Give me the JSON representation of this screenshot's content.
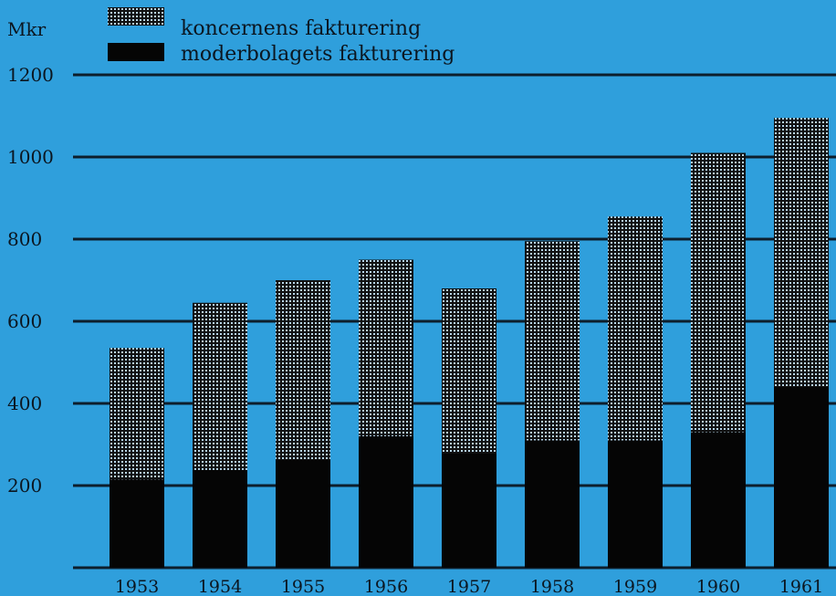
{
  "chart_data": {
    "type": "bar",
    "ylabel": "Mkr",
    "ylim": [
      0,
      1200
    ],
    "yticks": [
      200,
      400,
      600,
      800,
      1000,
      1200
    ],
    "grid": true,
    "legend_position": "top-left",
    "categories": [
      "1953",
      "1954",
      "1955",
      "1956",
      "1957",
      "1958",
      "1959",
      "1960",
      "1961"
    ],
    "series": [
      {
        "name": "koncernens fakturering",
        "values": [
          535,
          645,
          700,
          750,
          680,
          795,
          855,
          1010,
          1095
        ],
        "color": "#111111",
        "pattern": "dotted"
      },
      {
        "name": "moderbolagets fakturering",
        "values": [
          215,
          238,
          262,
          320,
          278,
          310,
          310,
          330,
          440
        ],
        "color": "#050505",
        "pattern": "solid"
      }
    ]
  },
  "colors": {
    "background": "#2f9fdc",
    "grid": "#0d1e2c",
    "text": "#0b1620"
  }
}
